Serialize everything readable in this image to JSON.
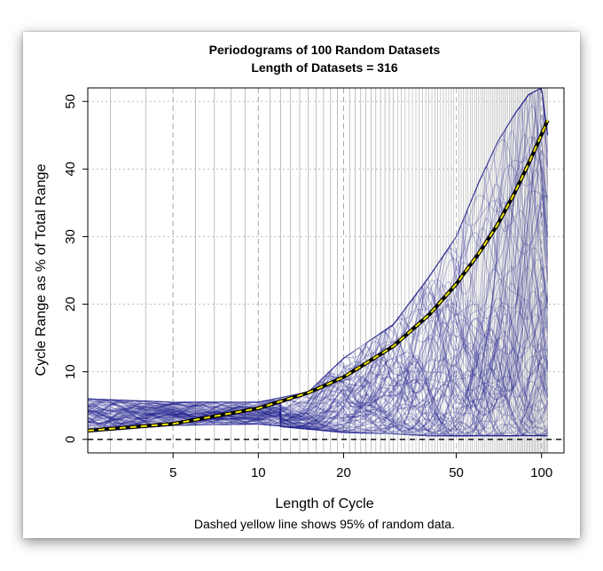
{
  "chart_data": {
    "type": "line",
    "title": "Periodograms of 100 Random Datasets",
    "subtitle": "Length of Datasets = 316",
    "xlabel": "Length of Cycle",
    "ylabel": "Cycle Range as % of Total Range",
    "caption": "Dashed yellow line shows 95% of random data.",
    "x_scale": "log",
    "xlim": [
      2.5,
      120
    ],
    "ylim": [
      -2,
      52
    ],
    "x_ticks": [
      5,
      10,
      20,
      50,
      100
    ],
    "x_tick_labels": [
      "5",
      "10",
      "20",
      "50",
      "100"
    ],
    "y_ticks": [
      0,
      10,
      20,
      30,
      40,
      50
    ],
    "y_tick_labels": [
      "0",
      "10",
      "20",
      "30",
      "40",
      "50"
    ],
    "grid": true,
    "dataset_count": 100,
    "dataset_length": 316,
    "series_color": "#1a1a8c",
    "threshold_color": "#f2e600",
    "series": [
      {
        "kind": "periodogram-bundle",
        "count": 100,
        "x_range": [
          2.5,
          105
        ],
        "envelope_x": [
          2.5,
          5,
          10,
          15,
          20,
          30,
          40,
          50,
          60,
          70,
          80,
          90,
          100,
          105
        ],
        "envelope_low": [
          1.0,
          2.0,
          2.2,
          1.5,
          1.0,
          0.8,
          0.5,
          0.5,
          0.5,
          0.5,
          0.5,
          0.5,
          0.5,
          0.5
        ],
        "envelope_high": [
          6.0,
          5.5,
          5.5,
          7.0,
          12.0,
          17.0,
          24.0,
          30.0,
          38.0,
          44.0,
          48.0,
          51.0,
          52.0,
          45.0
        ]
      },
      {
        "name": "95% of random data",
        "kind": "threshold",
        "x": [
          2.5,
          5,
          10,
          15,
          20,
          30,
          40,
          50,
          60,
          70,
          80,
          90,
          100,
          105
        ],
        "y": [
          1.3,
          2.3,
          4.6,
          6.9,
          9.2,
          13.8,
          18.4,
          23.0,
          27.5,
          31.8,
          36.3,
          40.8,
          45.1,
          47.2
        ]
      },
      {
        "name": "zero",
        "kind": "reference",
        "y": 0
      }
    ]
  }
}
